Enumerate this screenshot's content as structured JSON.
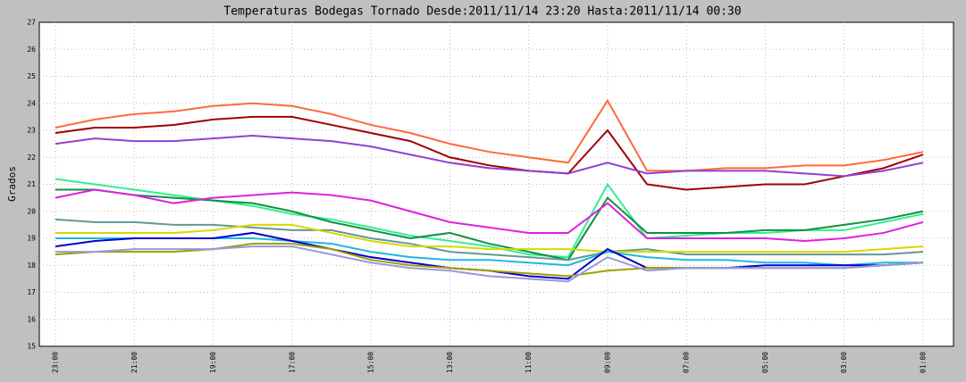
{
  "chart_data": {
    "type": "line",
    "title": "Temperaturas Bodegas Tornado Desde:2011/11/14 23:20 Hasta:2011/11/14 00:30",
    "y_label": "Grados",
    "categories": [
      "23:00",
      null,
      "21:00",
      null,
      "19:00",
      null,
      "17:00",
      null,
      "15:00",
      null,
      "13:00",
      null,
      "11:00",
      null,
      "09:00",
      null,
      "07:00",
      null,
      "05:00",
      null,
      "03:00",
      null,
      "01:00"
    ],
    "ylim": [
      15,
      27
    ],
    "yticks": [
      15,
      16,
      17,
      18,
      19,
      20,
      21,
      22,
      23,
      24,
      25,
      26,
      27
    ],
    "grid": true,
    "series": [
      {
        "color": "#ff6a3a",
        "values": [
          23.1,
          23.4,
          23.6,
          23.7,
          23.9,
          24.0,
          23.9,
          23.6,
          23.2,
          22.9,
          22.5,
          22.2,
          22.0,
          21.8,
          24.1,
          21.5,
          21.5,
          21.6,
          21.6,
          21.7,
          21.7,
          21.9,
          22.2
        ]
      },
      {
        "color": "#a00000",
        "values": [
          22.9,
          23.1,
          23.1,
          23.2,
          23.4,
          23.5,
          23.5,
          23.2,
          22.9,
          22.6,
          22.0,
          21.7,
          21.5,
          21.4,
          23.0,
          21.0,
          20.8,
          20.9,
          21.0,
          21.0,
          21.3,
          21.6,
          22.1
        ]
      },
      {
        "color": "#9040d0",
        "values": [
          22.5,
          22.7,
          22.6,
          22.6,
          22.7,
          22.8,
          22.7,
          22.6,
          22.4,
          22.1,
          21.8,
          21.6,
          21.5,
          21.4,
          21.8,
          21.4,
          21.5,
          21.5,
          21.5,
          21.4,
          21.3,
          21.5,
          21.8
        ]
      },
      {
        "color": "#30f090",
        "values": [
          21.2,
          21.0,
          20.8,
          20.6,
          20.4,
          20.2,
          19.9,
          19.7,
          19.4,
          19.1,
          18.9,
          18.7,
          18.4,
          18.3,
          21.0,
          19.0,
          19.1,
          19.2,
          19.2,
          19.3,
          19.3,
          19.6,
          19.9
        ]
      },
      {
        "color": "#109040",
        "values": [
          20.8,
          20.8,
          20.6,
          20.5,
          20.4,
          20.3,
          20.0,
          19.6,
          19.3,
          19.0,
          19.2,
          18.8,
          18.5,
          18.2,
          20.5,
          19.2,
          19.2,
          19.2,
          19.3,
          19.3,
          19.5,
          19.7,
          20.0
        ]
      },
      {
        "color": "#e020e0",
        "values": [
          20.5,
          20.8,
          20.6,
          20.3,
          20.5,
          20.6,
          20.7,
          20.6,
          20.4,
          20.0,
          19.6,
          19.4,
          19.2,
          19.2,
          20.3,
          19.0,
          19.0,
          19.0,
          19.0,
          18.9,
          19.0,
          19.2,
          19.6
        ]
      },
      {
        "color": "#609898",
        "values": [
          19.7,
          19.6,
          19.6,
          19.5,
          19.5,
          19.4,
          19.3,
          19.3,
          19.0,
          18.8,
          18.5,
          18.4,
          18.3,
          18.2,
          18.5,
          18.6,
          18.4,
          18.4,
          18.4,
          18.4,
          18.4,
          18.4,
          18.5
        ]
      },
      {
        "color": "#d8d800",
        "values": [
          19.2,
          19.2,
          19.2,
          19.2,
          19.3,
          19.5,
          19.5,
          19.2,
          18.9,
          18.7,
          18.7,
          18.6,
          18.6,
          18.6,
          18.5,
          18.5,
          18.5,
          18.5,
          18.5,
          18.5,
          18.5,
          18.6,
          18.7
        ]
      },
      {
        "color": "#20b8e0",
        "values": [
          19.0,
          19.0,
          19.0,
          19.0,
          19.0,
          19.0,
          18.9,
          18.8,
          18.5,
          18.3,
          18.2,
          18.2,
          18.1,
          18.0,
          18.5,
          18.3,
          18.2,
          18.2,
          18.1,
          18.1,
          18.0,
          18.1,
          18.1
        ]
      },
      {
        "color": "#0000d0",
        "values": [
          18.7,
          18.9,
          19.0,
          19.0,
          19.0,
          19.2,
          18.9,
          18.6,
          18.3,
          18.1,
          17.9,
          17.8,
          17.6,
          17.5,
          18.6,
          17.9,
          17.9,
          17.9,
          18.0,
          18.0,
          18.0,
          18.0,
          18.1
        ]
      },
      {
        "color": "#a0a000",
        "values": [
          18.4,
          18.5,
          18.5,
          18.5,
          18.6,
          18.8,
          18.8,
          18.6,
          18.2,
          18.0,
          17.9,
          17.8,
          17.7,
          17.6,
          17.8,
          17.9,
          17.9,
          17.9,
          17.9,
          17.9,
          17.9,
          18.0,
          18.1
        ]
      },
      {
        "color": "#9898e0",
        "values": [
          18.5,
          18.5,
          18.6,
          18.6,
          18.6,
          18.7,
          18.7,
          18.4,
          18.1,
          17.9,
          17.8,
          17.6,
          17.5,
          17.4,
          18.3,
          17.8,
          17.9,
          17.9,
          17.9,
          17.9,
          17.9,
          18.0,
          18.1
        ]
      }
    ]
  }
}
